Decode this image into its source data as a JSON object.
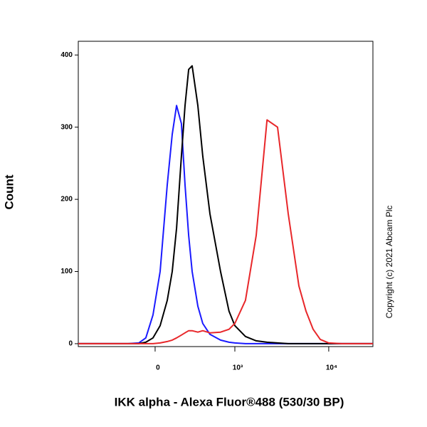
{
  "chart_data": {
    "type": "line",
    "xlabel": "IKK alpha - Alexa Fluor®488 (530/30 BP)",
    "ylabel": "Count",
    "annotation": "Copyright (c) 2021 Abcam Plc",
    "xscale": "biexponential",
    "x": [
      -929,
      -433,
      -208,
      -120,
      -67,
      -15,
      36,
      88,
      126,
      160,
      201,
      233,
      267,
      302,
      363,
      422,
      518,
      691,
      862,
      1000,
      1306,
      1702,
      2221,
      2876,
      3731,
      4840,
      5757,
      6845,
      8137,
      10000,
      13670,
      19310,
      29280
    ],
    "series": [
      {
        "color": "#1a1aff",
        "values": [
          0,
          0,
          0,
          1,
          8,
          40,
          100,
          220,
          290,
          330,
          305,
          220,
          150,
          100,
          52,
          28,
          13,
          5,
          2,
          1,
          0,
          0,
          0,
          0,
          0,
          0,
          0,
          0,
          0,
          0,
          0,
          0,
          0
        ]
      },
      {
        "color": "#000000",
        "values": [
          0,
          0,
          0,
          0,
          2,
          8,
          25,
          60,
          100,
          160,
          260,
          330,
          380,
          385,
          330,
          260,
          180,
          100,
          45,
          25,
          10,
          4,
          2,
          1,
          0,
          0,
          0,
          0,
          0,
          0,
          0,
          0,
          0
        ]
      },
      {
        "color": "#e8272a",
        "values": [
          0,
          0,
          0,
          0,
          0,
          0,
          1,
          3,
          5,
          8,
          12,
          15,
          18,
          18,
          16,
          18,
          15,
          16,
          20,
          28,
          60,
          150,
          310,
          300,
          180,
          80,
          45,
          20,
          6,
          1,
          0,
          0,
          0
        ]
      }
    ],
    "xlim": [
      -929,
      29280
    ],
    "xticks": [
      0,
      {
        "value": 1000,
        "label": "10³"
      },
      {
        "value": 10000,
        "label": "10⁴"
      }
    ],
    "ylim": [
      -4,
      419
    ],
    "yticks": [
      0,
      100,
      200,
      300,
      400
    ]
  }
}
